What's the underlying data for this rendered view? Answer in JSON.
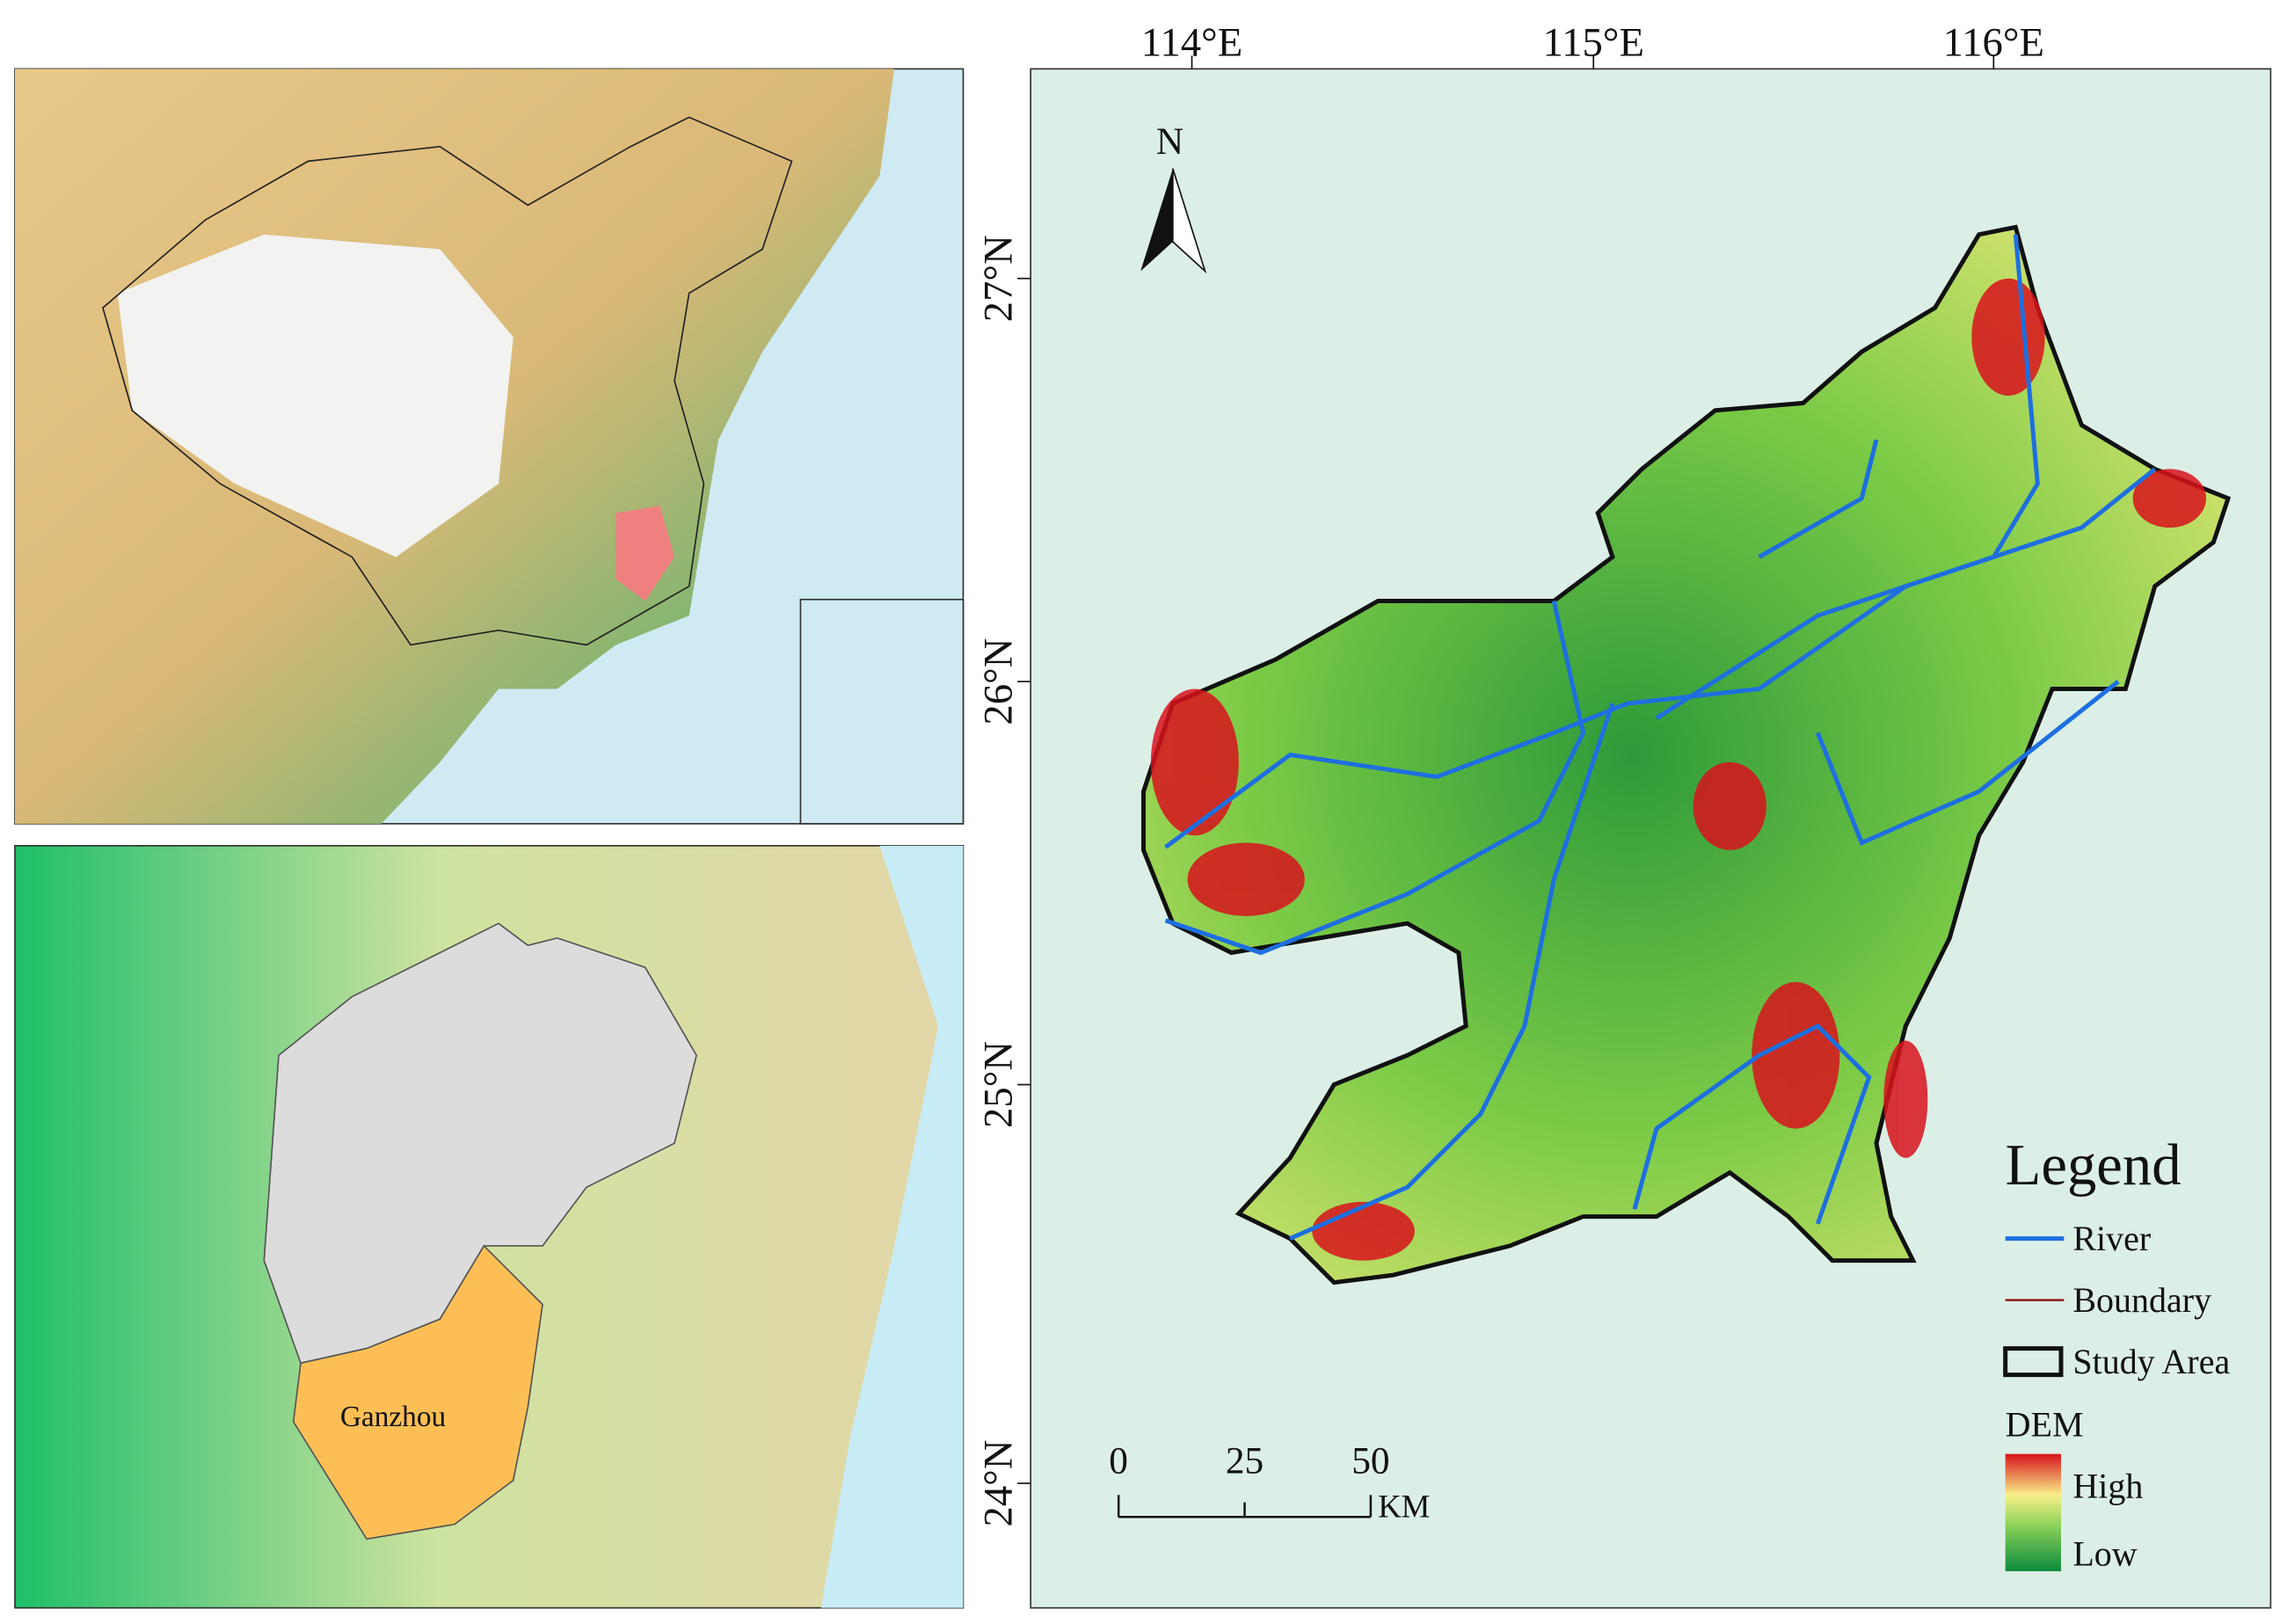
{
  "lon_labels": [
    "114°E",
    "115°E",
    "116°E"
  ],
  "lat_labels": [
    "27°N",
    "26°N",
    "25°N",
    "24°N"
  ],
  "north": "N",
  "inset_label": "Ganzhou",
  "legend": {
    "title": "Legend",
    "items": [
      "River",
      "Boundary",
      "Study Area"
    ],
    "dem_title": "DEM",
    "high": "High",
    "low": "Low"
  },
  "scale_bar": {
    "ticks": [
      0,
      25,
      50
    ],
    "unit": "KM"
  }
}
